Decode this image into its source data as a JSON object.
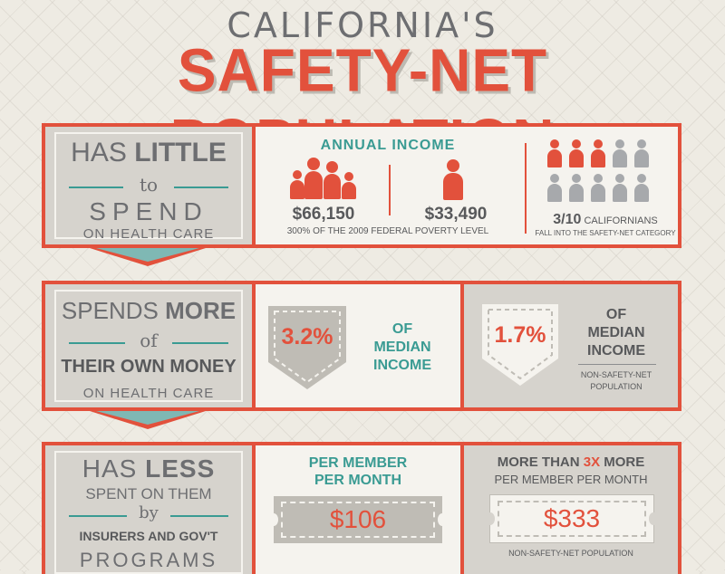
{
  "header": {
    "line1": "CALIFORNIA'S",
    "line2": "SAFETY-NET POPULATION"
  },
  "section1": {
    "left": {
      "line1a": "HAS ",
      "line1b": "LITTLE",
      "line2": "to",
      "line3": "SPEND",
      "line4": "ON HEALTH CARE"
    },
    "income_title": "ANNUAL INCOME",
    "family_income": "$66,150",
    "single_income": "$33,490",
    "poverty_note": "300% OF THE 2009 FEDERAL POVERTY LEVEL",
    "ratio_value": "3/10",
    "ratio_label": "CALIFORNIANS",
    "ratio_sub": "FALL INTO THE SAFETY-NET CATEGORY",
    "ratio_highlighted": 3,
    "ratio_total": 10,
    "colors": {
      "red": "#e2513c",
      "grey": "#a7a9ac",
      "teal": "#3a9b93"
    }
  },
  "section2": {
    "left": {
      "line1a": "SPENDS ",
      "line1b": "MORE",
      "line2": "of",
      "line3": "THEIR OWN MONEY",
      "line4": "ON HEALTH CARE"
    },
    "safety_pct": "3.2%",
    "safety_l1": "OF",
    "safety_l2": "MEDIAN",
    "safety_l3": "INCOME",
    "non_pct": "1.7%",
    "non_l1": "OF",
    "non_l2": "MEDIAN",
    "non_l3": "INCOME",
    "non_note1": "NON-SAFETY-NET",
    "non_note2": "POPULATION"
  },
  "section3": {
    "left": {
      "line1a": "HAS",
      "line1b": "LESS",
      "line2": "SPENT ON THEM",
      "line3": "by",
      "line4": "INSURERS AND GOV'T",
      "line5": "PROGRAMS"
    },
    "pm_l1": "PER MEMBER",
    "pm_l2": "PER MONTH",
    "safety_amount": "$106",
    "more_a": "MORE THAN ",
    "more_b": "3X",
    "more_c": " MORE",
    "more_sub": "PER MEMBER PER MONTH",
    "non_amount": "$333",
    "non_note": "NON-SAFETY-NET POPULATION"
  }
}
